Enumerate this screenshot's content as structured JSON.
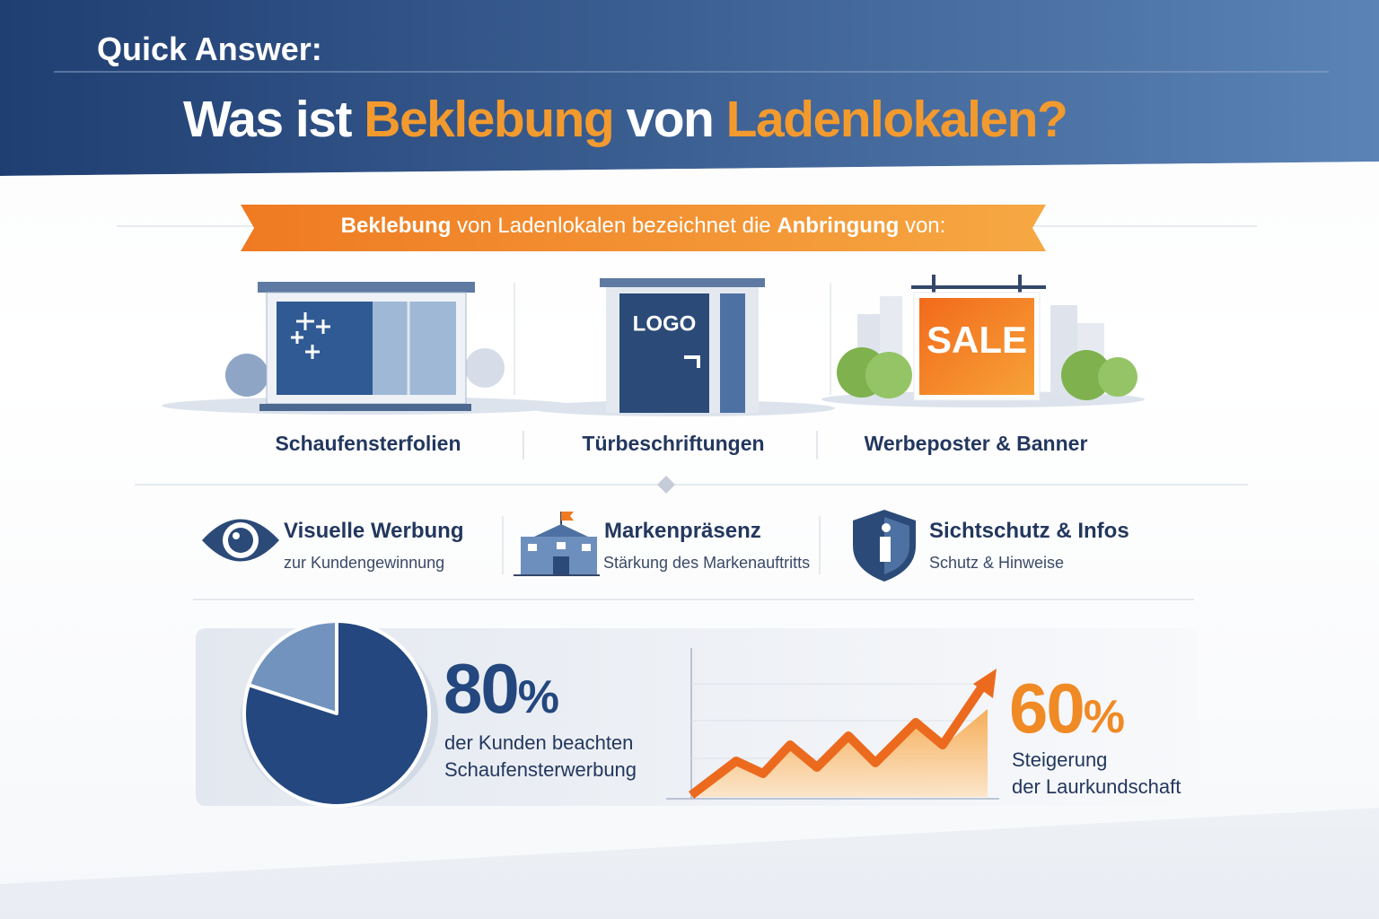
{
  "header": {
    "kicker": "Quick Answer:",
    "title": [
      "Was ist ",
      "Beklebung",
      " von ",
      "Ladenlokalen?"
    ]
  },
  "banner": [
    "Beklebung",
    " von Ladenlokalen bezeichnet die ",
    "Anbringung",
    " von:"
  ],
  "applications": [
    {
      "label": "Schaufensterfolien"
    },
    {
      "label": "Türbeschriftungen",
      "sign": "LOGO"
    },
    {
      "label": "Werbeposter & Banner",
      "sign": "SALE"
    }
  ],
  "features": [
    {
      "title": "Visuelle Werbung",
      "subtitle": "zur Kundengewinnung"
    },
    {
      "title": "Markenpräsenz",
      "subtitle": "Stärkung des Markenauftritts"
    },
    {
      "title": "Sichtschutz & Infos",
      "subtitle": "Schutz & Hinweise"
    }
  ],
  "stats": [
    {
      "value": 80,
      "unit": "%",
      "text": [
        "der Kunden beachten",
        "Schaufensterwerbung"
      ]
    },
    {
      "value": 60,
      "unit": "%",
      "text": [
        "Steigerung",
        "der Laurkundschaft"
      ]
    }
  ]
}
